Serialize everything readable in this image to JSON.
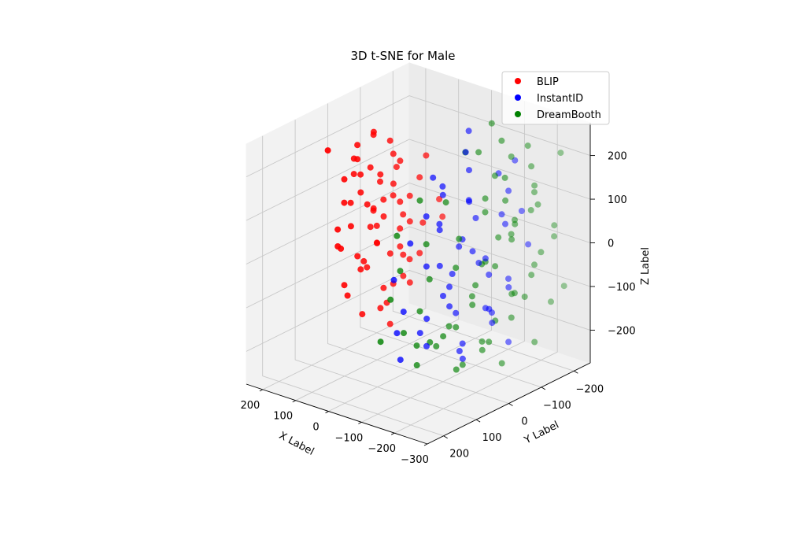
{
  "chart_data": {
    "type": "scatter",
    "projection": "3d",
    "title": "3D t-SNE for Male",
    "xlabel": "X Label",
    "ylabel": "Y Label",
    "zlabel": "Z Label",
    "xlim": [
      -300,
      250
    ],
    "ylim": [
      -250,
      250
    ],
    "zlim": [
      -275,
      275
    ],
    "xticks": [
      {
        "value": 200,
        "label": "200"
      },
      {
        "value": 100,
        "label": "100"
      },
      {
        "value": 0,
        "label": "0"
      },
      {
        "value": -100,
        "label": "−100"
      },
      {
        "value": -200,
        "label": "−200"
      },
      {
        "value": -300,
        "label": "−300"
      }
    ],
    "yticks": [
      {
        "value": -200,
        "label": "−200"
      },
      {
        "value": -100,
        "label": "−100"
      },
      {
        "value": 0,
        "label": "0"
      },
      {
        "value": 100,
        "label": "100"
      },
      {
        "value": 200,
        "label": "200"
      }
    ],
    "zticks": [
      {
        "value": 200,
        "label": "200"
      },
      {
        "value": 100,
        "label": "100"
      },
      {
        "value": 0,
        "label": "0"
      },
      {
        "value": -100,
        "label": "−100"
      },
      {
        "value": -200,
        "label": "−200"
      }
    ],
    "grid": true,
    "legend_position": "top-right",
    "series": [
      {
        "name": "BLIP",
        "color": "#ff0000",
        "points": [
          [
            150,
            -40,
            220
          ],
          [
            180,
            -20,
            190
          ],
          [
            120,
            -60,
            200
          ],
          [
            160,
            0,
            170
          ],
          [
            200,
            -30,
            150
          ],
          [
            130,
            -80,
            160
          ],
          [
            170,
            -50,
            130
          ],
          [
            110,
            -20,
            140
          ],
          [
            190,
            10,
            120
          ],
          [
            140,
            -100,
            120
          ],
          [
            210,
            -60,
            100
          ],
          [
            100,
            -50,
            110
          ],
          [
            160,
            -10,
            90
          ],
          [
            180,
            -90,
            80
          ],
          [
            120,
            10,
            80
          ],
          [
            200,
            0,
            60
          ],
          [
            140,
            -60,
            60
          ],
          [
            90,
            -90,
            70
          ],
          [
            220,
            -40,
            40
          ],
          [
            170,
            -120,
            40
          ],
          [
            110,
            -30,
            40
          ],
          [
            150,
            30,
            30
          ],
          [
            190,
            -80,
            20
          ],
          [
            130,
            -110,
            10
          ],
          [
            210,
            10,
            0
          ],
          [
            100,
            -70,
            0
          ],
          [
            160,
            -40,
            0
          ],
          [
            180,
            40,
            -20
          ],
          [
            120,
            -20,
            -20
          ],
          [
            200,
            -100,
            -30
          ],
          [
            140,
            20,
            -40
          ],
          [
            90,
            -30,
            -40
          ],
          [
            170,
            -70,
            -50
          ],
          [
            230,
            -20,
            -60
          ],
          [
            110,
            -90,
            -70
          ],
          [
            150,
            0,
            -80
          ],
          [
            190,
            -50,
            -90
          ],
          [
            130,
            -130,
            -100
          ],
          [
            80,
            -60,
            -100
          ],
          [
            170,
            30,
            -110
          ],
          [
            210,
            -80,
            -120
          ],
          [
            120,
            -40,
            -130
          ],
          [
            150,
            -100,
            -150
          ],
          [
            190,
            0,
            -150
          ],
          [
            100,
            -10,
            -160
          ],
          [
            140,
            -70,
            -180
          ],
          [
            175,
            -30,
            -200
          ],
          [
            120,
            -60,
            -220
          ],
          [
            60,
            -90,
            120
          ],
          [
            70,
            -40,
            80
          ],
          [
            60,
            -60,
            30
          ],
          [
            80,
            -120,
            0
          ],
          [
            50,
            -20,
            -10
          ],
          [
            70,
            -100,
            -60
          ],
          [
            60,
            -60,
            -110
          ],
          [
            40,
            -130,
            60
          ],
          [
            50,
            -150,
            10
          ],
          [
            220,
            -110,
            170
          ],
          [
            240,
            -70,
            90
          ],
          [
            230,
            -120,
            -10
          ],
          [
            60,
            -30,
            180
          ],
          [
            80,
            -130,
            150
          ],
          [
            230,
            20,
            180
          ]
        ]
      },
      {
        "name": "InstantID",
        "color": "#0000ff",
        "points": [
          [
            -20,
            -160,
            220
          ],
          [
            -60,
            -110,
            200
          ],
          [
            -100,
            -80,
            180
          ],
          [
            -30,
            -40,
            160
          ],
          [
            -150,
            -120,
            170
          ],
          [
            -200,
            -100,
            150
          ],
          [
            -80,
            -20,
            140
          ],
          [
            -120,
            -60,
            120
          ],
          [
            0,
            -100,
            110
          ],
          [
            -160,
            -40,
            100
          ],
          [
            -220,
            -70,
            90
          ],
          [
            -50,
            -130,
            80
          ],
          [
            -90,
            0,
            70
          ],
          [
            -130,
            -150,
            60
          ],
          [
            -180,
            -10,
            40
          ],
          [
            -20,
            -70,
            40
          ],
          [
            -240,
            -120,
            30
          ],
          [
            -70,
            -90,
            10
          ],
          [
            -110,
            20,
            0
          ],
          [
            -150,
            -80,
            -10
          ],
          [
            -200,
            -40,
            -20
          ],
          [
            -40,
            -10,
            -30
          ],
          [
            -10,
            -140,
            -40
          ],
          [
            -90,
            -120,
            -50
          ],
          [
            -130,
            30,
            -60
          ],
          [
            -170,
            -130,
            -70
          ],
          [
            -230,
            -10,
            -80
          ],
          [
            -60,
            -60,
            -90
          ],
          [
            -100,
            -20,
            -110
          ],
          [
            -20,
            40,
            -120
          ],
          [
            -140,
            -90,
            -130
          ],
          [
            -190,
            -60,
            -140
          ],
          [
            -80,
            50,
            -150
          ],
          [
            -120,
            -130,
            -160
          ],
          [
            -40,
            -100,
            -170
          ],
          [
            -170,
            20,
            -180
          ],
          [
            -210,
            -90,
            -190
          ],
          [
            -60,
            10,
            -200
          ],
          [
            -100,
            -60,
            -210
          ],
          [
            -140,
            -20,
            -220
          ],
          [
            -30,
            60,
            -220
          ],
          [
            0,
            -50,
            60
          ],
          [
            -250,
            -50,
            -40
          ],
          [
            -250,
            -90,
            120
          ],
          [
            30,
            -160,
            -120
          ],
          [
            10,
            30,
            -180
          ],
          [
            -180,
            -140,
            200
          ],
          [
            -30,
            80,
            -30
          ],
          [
            -70,
            70,
            60
          ],
          [
            -120,
            70,
            -100
          ]
        ]
      },
      {
        "name": "DreamBooth",
        "color": "#008000",
        "points": [
          [
            -50,
            -200,
            230
          ],
          [
            -100,
            -180,
            210
          ],
          [
            -150,
            -210,
            200
          ],
          [
            -200,
            -170,
            180
          ],
          [
            -20,
            -190,
            160
          ],
          [
            -80,
            -230,
            150
          ],
          [
            -130,
            -160,
            140
          ],
          [
            -180,
            -200,
            120
          ],
          [
            -240,
            -150,
            110
          ],
          [
            -40,
            -220,
            100
          ],
          [
            -90,
            -140,
            90
          ],
          [
            -140,
            -240,
            80
          ],
          [
            -190,
            -130,
            60
          ],
          [
            -250,
            -190,
            50
          ],
          [
            -60,
            -170,
            40
          ],
          [
            -110,
            -210,
            20
          ],
          [
            -160,
            -150,
            10
          ],
          [
            -210,
            -230,
            0
          ],
          [
            -30,
            -120,
            -10
          ],
          [
            -80,
            -190,
            -20
          ],
          [
            -130,
            -100,
            -30
          ],
          [
            -180,
            -220,
            -40
          ],
          [
            -230,
            -140,
            -50
          ],
          [
            -50,
            -90,
            -60
          ],
          [
            -100,
            -160,
            -70
          ],
          [
            -150,
            -230,
            -80
          ],
          [
            -200,
            -110,
            -90
          ],
          [
            -20,
            -200,
            -100
          ],
          [
            -70,
            -130,
            -110
          ],
          [
            -120,
            -70,
            -120
          ],
          [
            -170,
            -180,
            -130
          ],
          [
            -220,
            -210,
            -140
          ],
          [
            -40,
            -150,
            -150
          ],
          [
            -90,
            -230,
            -160
          ],
          [
            -140,
            -120,
            -170
          ],
          [
            -190,
            -50,
            -180
          ],
          [
            -60,
            -80,
            -190
          ],
          [
            -110,
            -200,
            -200
          ],
          [
            -160,
            -60,
            -210
          ],
          [
            -210,
            -170,
            -220
          ],
          [
            -30,
            -50,
            -230
          ],
          [
            -80,
            -140,
            -240
          ],
          [
            -130,
            -30,
            -240
          ],
          [
            -180,
            -100,
            -250
          ],
          [
            -40,
            20,
            -200
          ],
          [
            0,
            -30,
            -150
          ],
          [
            20,
            -80,
            -100
          ],
          [
            40,
            -10,
            -60
          ],
          [
            10,
            -60,
            -10
          ],
          [
            30,
            10,
            30
          ],
          [
            0,
            -110,
            70
          ],
          [
            -10,
            -20,
            110
          ],
          [
            20,
            -190,
            150
          ],
          [
            -220,
            -240,
            190
          ],
          [
            -250,
            -220,
            -100
          ],
          [
            -100,
            40,
            -170
          ],
          [
            -150,
            50,
            -140
          ],
          [
            -50,
            70,
            -150
          ],
          [
            -200,
            60,
            -200
          ],
          [
            0,
            60,
            -90
          ],
          [
            40,
            50,
            -200
          ],
          [
            20,
            -140,
            -230
          ],
          [
            -120,
            -250,
            30
          ],
          [
            -60,
            -250,
            -40
          ],
          [
            -230,
            -60,
            150
          ],
          [
            -80,
            60,
            -220
          ]
        ]
      }
    ]
  }
}
